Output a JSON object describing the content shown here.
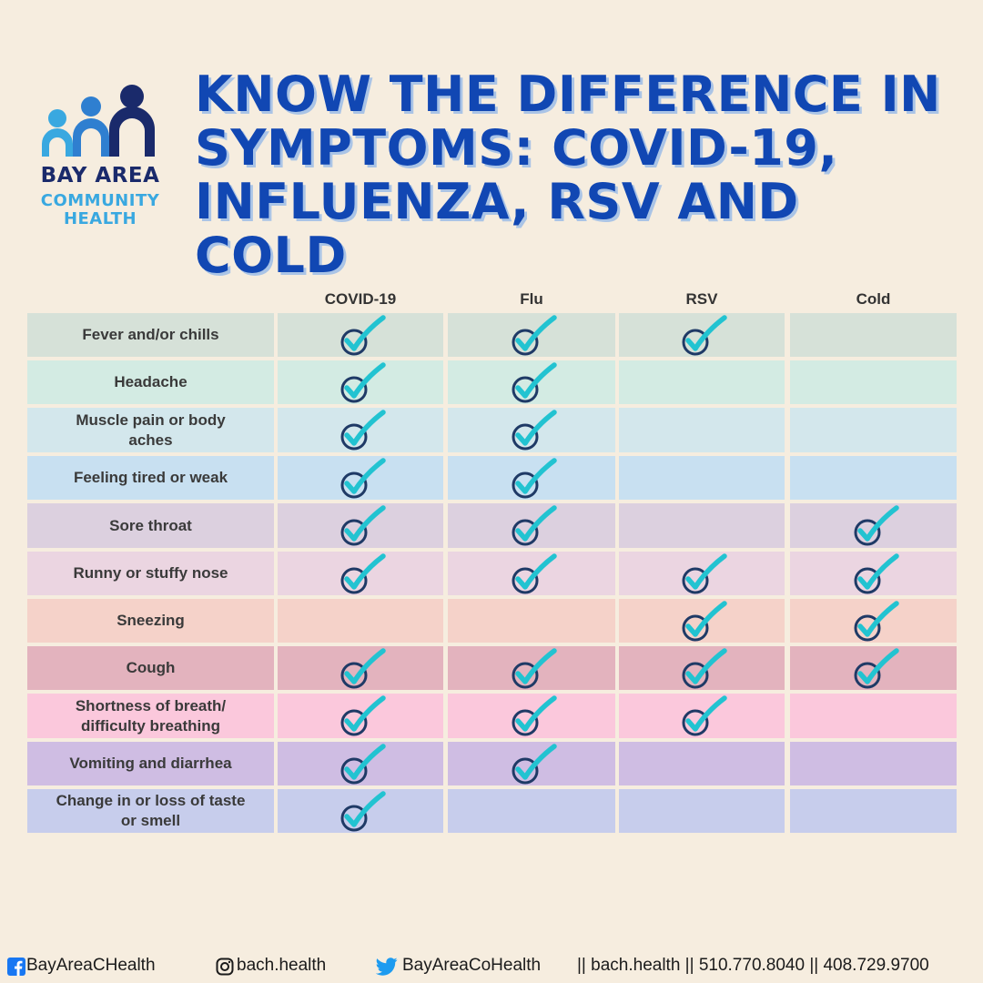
{
  "logo": {
    "line1": "BAY AREA",
    "line2": "COMMUNITY",
    "line3": "HEALTH"
  },
  "title": "KNOW THE DIFFERENCE IN\nSYMPTOMS: COVID-19,\nINFLUENZA, RSV AND\nCOLD",
  "columns": [
    "COVID-19",
    "Flu",
    "RSV",
    "Cold"
  ],
  "rows": [
    {
      "label": "Fever and/or chills",
      "color": "#d6e1d8",
      "checks": [
        true,
        true,
        true,
        false
      ]
    },
    {
      "label": "Headache",
      "color": "#d3ebe3",
      "checks": [
        true,
        true,
        false,
        false
      ]
    },
    {
      "label": "Muscle pain or body aches",
      "color": "#d3e7ec",
      "checks": [
        true,
        true,
        false,
        false
      ]
    },
    {
      "label": "Feeling tired or weak",
      "color": "#c8e0f1",
      "checks": [
        true,
        true,
        false,
        false
      ]
    },
    {
      "label": "Sore throat",
      "color": "#dcd0df",
      "checks": [
        true,
        true,
        false,
        true
      ]
    },
    {
      "label": "Runny or stuffy nose",
      "color": "#ebd5e1",
      "checks": [
        true,
        true,
        true,
        true
      ]
    },
    {
      "label": "Sneezing",
      "color": "#f5d2c9",
      "checks": [
        false,
        false,
        true,
        true
      ]
    },
    {
      "label": "Cough",
      "color": "#e3b3be",
      "checks": [
        true,
        true,
        true,
        true
      ]
    },
    {
      "label": "Shortness of breath/ difficulty breathing",
      "color": "#fbc8dc",
      "checks": [
        true,
        true,
        true,
        false
      ]
    },
    {
      "label": "Vomiting and diarrhea",
      "color": "#cfbde3",
      "checks": [
        true,
        true,
        false,
        false
      ]
    },
    {
      "label": "Change in or loss of taste or smell",
      "color": "#c7cdec",
      "checks": [
        true,
        false,
        false,
        false
      ]
    }
  ],
  "footer": {
    "facebook": "BayAreaCHealth",
    "instagram": "bach.health",
    "twitter": "BayAreaCoHealth",
    "contact": "||  bach.health || 510.770.8040 || 408.729.9700"
  },
  "colors": {
    "title": "#1147b3",
    "check_circle": "#1f3a66",
    "check_mark": "#22c3d1",
    "logo_dark": "#1a2a6b",
    "logo_light": "#39a8e0"
  },
  "icons": [
    "facebook-icon",
    "instagram-icon",
    "twitter-icon",
    "check-icon"
  ]
}
